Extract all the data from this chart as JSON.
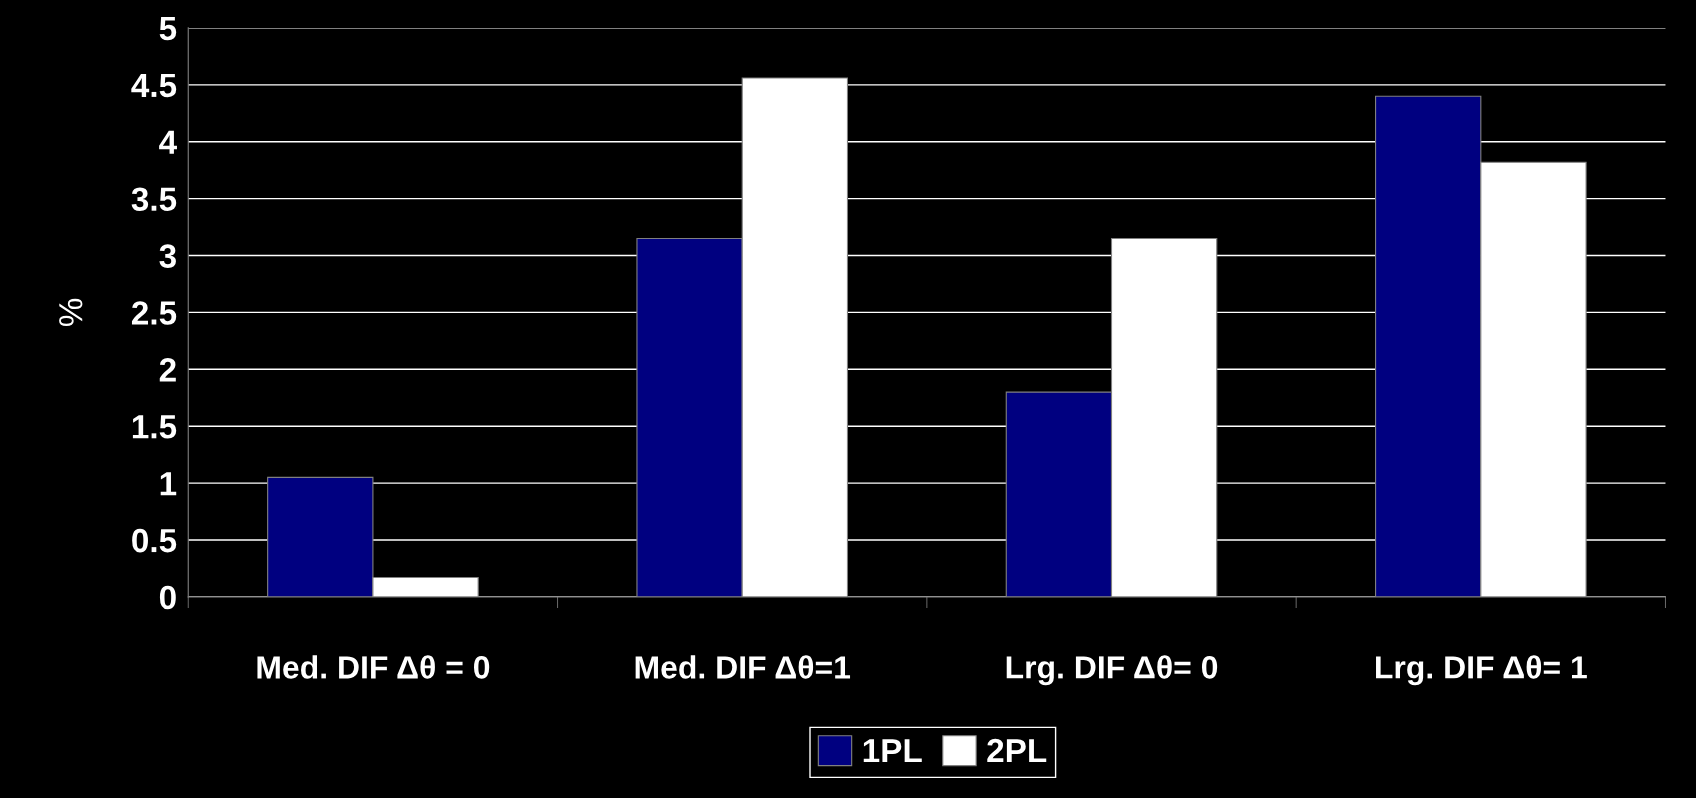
{
  "chart_data": {
    "type": "bar",
    "ylabel": "%",
    "categories": [
      "Med. DIF Δθ = 0",
      "Med. DIF Δθ=1",
      "Lrg. DIF Δθ= 0",
      "Lrg. DIF Δθ= 1"
    ],
    "series": [
      {
        "name": "1PL",
        "color": "#000080",
        "values": [
          1.05,
          3.15,
          1.8,
          4.4
        ]
      },
      {
        "name": "2PL",
        "color": "#ffffff",
        "values": [
          0.17,
          4.56,
          3.15,
          3.82
        ]
      }
    ],
    "ylim": [
      0,
      5
    ],
    "yticks": [
      0,
      0.5,
      1,
      1.5,
      2,
      2.5,
      3,
      3.5,
      4,
      4.5,
      5
    ],
    "grid": "y",
    "legend": "bottom"
  }
}
